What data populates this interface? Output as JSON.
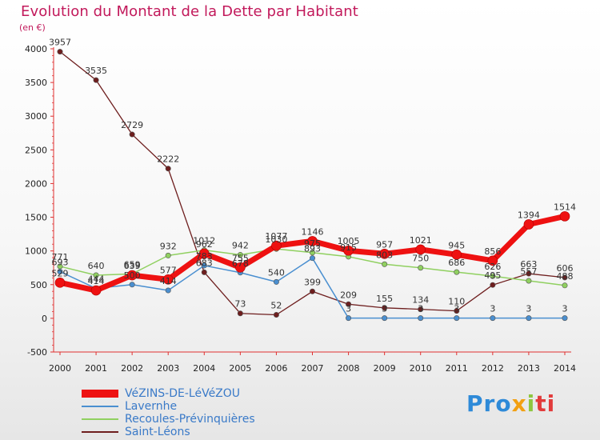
{
  "title": "Evolution du Montant de la Dette par Habitant",
  "subtitle": "(en €)",
  "brand": {
    "p1": "Pro",
    "p2": "x",
    "p3": "i",
    "p4": "ti"
  },
  "chart_data": {
    "type": "line",
    "x": [
      "2000",
      "2001",
      "2002",
      "2003",
      "2004",
      "2005",
      "2006",
      "2007",
      "2008",
      "2009",
      "2010",
      "2011",
      "2012",
      "2013",
      "2014"
    ],
    "ylim": [
      -500,
      4000
    ],
    "yticks": [
      "-500",
      "0",
      "500",
      "1000",
      "1500",
      "2000",
      "2500",
      "3000",
      "3500",
      "4000"
    ],
    "grid": false,
    "legend_position": "bottom-left",
    "series": [
      {
        "name": "VéZINS-DE-LéVéZOU",
        "color": "#ee1111",
        "values": [
          529,
          414,
          639,
          577,
          962,
          755,
          1077,
          1146,
          1005,
          957,
          1021,
          945,
          856,
          1394,
          1514
        ],
        "labels": [
          "529",
          "414",
          "639",
          "577",
          "962",
          "755",
          "1077",
          "1146",
          "1005",
          "957",
          "1021",
          "945",
          "856",
          "1394",
          "1514"
        ]
      },
      {
        "name": "Lavernhe",
        "color": "#4a8fd0",
        "values": [
          693,
          444,
          500,
          414,
          783,
          678,
          540,
          893,
          3,
          3,
          3,
          3,
          3,
          3,
          3
        ],
        "labels": [
          "693",
          "444",
          "500",
          "414",
          "783",
          "678",
          "540",
          "893",
          "3",
          "3",
          "3",
          "3",
          "3",
          "3",
          "3"
        ]
      },
      {
        "name": "Recoules-Prévinquières",
        "color": "#90d060",
        "values": [
          771,
          640,
          659,
          932,
          1012,
          942,
          1030,
          975,
          915,
          803,
          750,
          686,
          626,
          557,
          488
        ],
        "labels": [
          "771",
          "640",
          "659",
          "932",
          "1012",
          "942",
          "1030",
          "975",
          "915",
          "803",
          "750",
          "686",
          "626",
          "557",
          "488"
        ]
      },
      {
        "name": "Saint-Léons",
        "color": "#6e1e1e",
        "values": [
          3957,
          3535,
          2729,
          2222,
          683,
          73,
          52,
          399,
          209,
          155,
          134,
          110,
          495,
          663,
          606
        ],
        "labels": [
          "3957",
          "3535",
          "2729",
          "2222",
          "683",
          "73",
          "52",
          "399",
          "209",
          "155",
          "134",
          "110",
          "495",
          "663",
          "606"
        ]
      }
    ]
  }
}
